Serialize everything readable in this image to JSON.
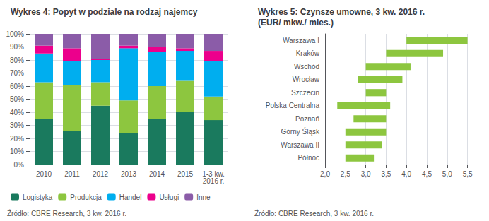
{
  "chart_data": [
    {
      "type": "bar",
      "title": "Wykres 4: Popyt w podziale na rodzaj najemcy",
      "categories": [
        "2010",
        "2011",
        "2012",
        "2013",
        "2014",
        "2015",
        "1-3 kw.\n2016 r."
      ],
      "series": [
        {
          "name": "Logistyka",
          "color": "#1a7a5e",
          "values": [
            35,
            26,
            45,
            24,
            35,
            40,
            34
          ]
        },
        {
          "name": "Produkcja",
          "color": "#8dc63f",
          "values": [
            28,
            35,
            18,
            25,
            25,
            24,
            18
          ]
        },
        {
          "name": "Handel",
          "color": "#00aeef",
          "values": [
            22,
            18,
            17,
            40,
            26,
            23,
            27
          ]
        },
        {
          "name": "Usługi",
          "color": "#ec008c",
          "values": [
            6,
            10,
            1,
            2,
            4,
            2,
            8
          ]
        },
        {
          "name": "Inne",
          "color": "#8b5ca8",
          "values": [
            9,
            11,
            19,
            9,
            10,
            11,
            13
          ]
        }
      ],
      "stacked": true,
      "ylim": [
        0,
        100
      ],
      "yticks": [
        {
          "value": 0,
          "label": "0%"
        },
        {
          "value": 10,
          "label": "10%"
        },
        {
          "value": 20,
          "label": "20%"
        },
        {
          "value": 30,
          "label": "30%"
        },
        {
          "value": 40,
          "label": "40%"
        },
        {
          "value": 50,
          "label": "50%"
        },
        {
          "value": 60,
          "label": "60%"
        },
        {
          "value": 70,
          "label": "70%"
        },
        {
          "value": 80,
          "label": "80%"
        },
        {
          "value": 90,
          "label": "90%"
        },
        {
          "value": 100,
          "label": "100%"
        }
      ],
      "grid": true,
      "legend": "lower left",
      "annotations": [
        "Źródło: CBRE Research, 3 kw. 2016 r."
      ]
    },
    {
      "type": "bar",
      "orientation": "horizontal",
      "title": "Wykres 5: Czynsze umowne, 3 kw. 2016 r.\n(EUR/ mkw./ mies.)",
      "categories": [
        "Warszawa I",
        "Kraków",
        "Wschód",
        "Wrocław",
        "Szczecin",
        "Polska Centralna",
        "Poznań",
        "Górny Śląsk",
        "Warszawa II",
        "Północ"
      ],
      "low": [
        4.0,
        3.5,
        3.0,
        2.8,
        3.0,
        2.3,
        2.7,
        2.5,
        2.5,
        2.5
      ],
      "high": [
        5.5,
        4.9,
        4.1,
        3.9,
        3.5,
        3.6,
        3.5,
        3.5,
        3.4,
        3.2
      ],
      "color": "#8dc63f",
      "xlim": [
        2.0,
        5.75
      ],
      "xticks": [
        {
          "value": 2.0,
          "label": "2,0"
        },
        {
          "value": 2.5,
          "label": "2,5"
        },
        {
          "value": 3.0,
          "label": "3,0"
        },
        {
          "value": 3.5,
          "label": "3,5"
        },
        {
          "value": 4.0,
          "label": "4,0"
        },
        {
          "value": 4.5,
          "label": "4,5"
        },
        {
          "value": 5.0,
          "label": "5,0"
        },
        {
          "value": 5.5,
          "label": "5,5"
        }
      ],
      "grid": true,
      "annotations": [
        "Źródło: CBRE Research, 3 kw. 2016 r."
      ]
    }
  ]
}
